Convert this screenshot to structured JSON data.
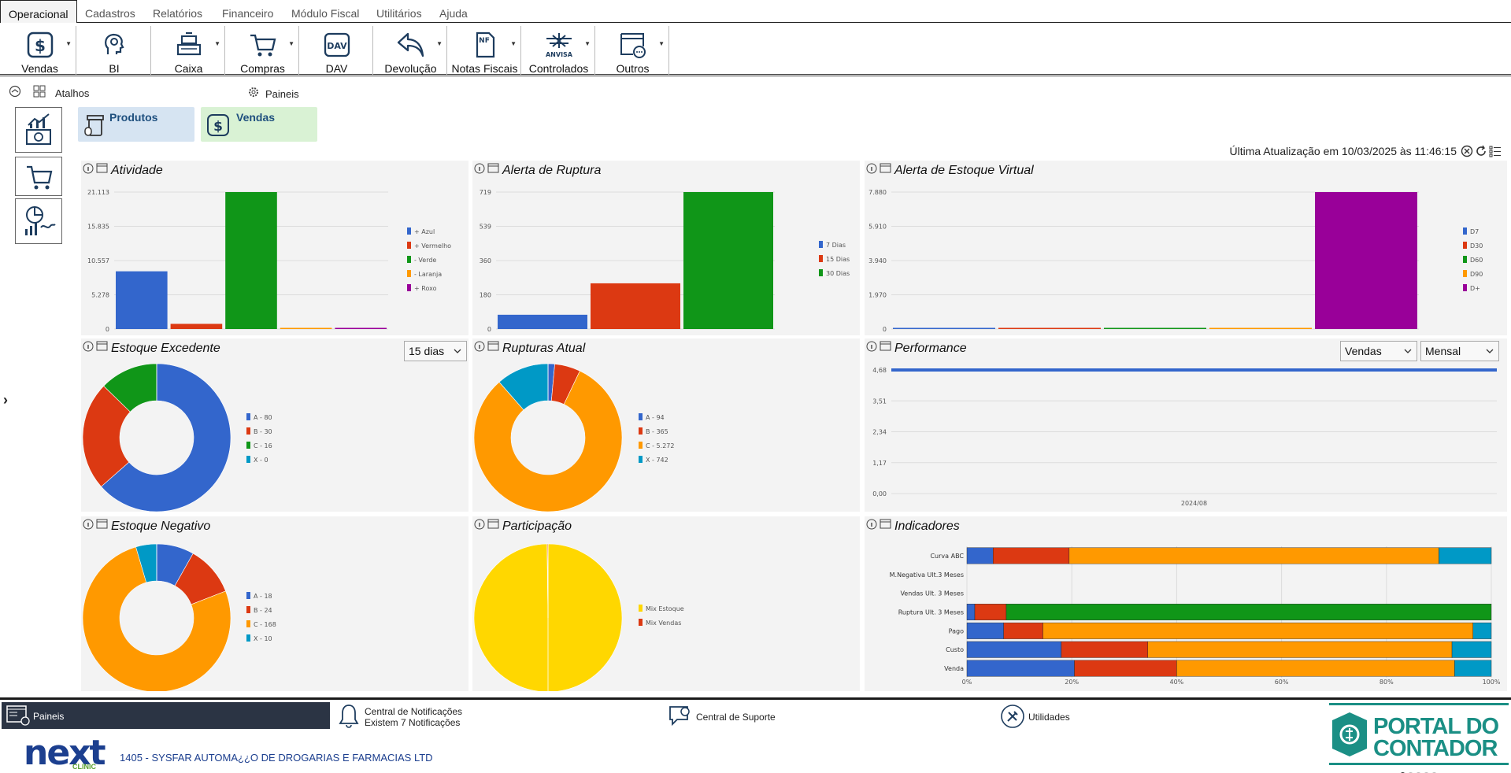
{
  "menu": {
    "items": [
      "Operacional",
      "Cadastros",
      "Relatórios",
      "Financeiro",
      "Módulo Fiscal",
      "Utilitários",
      "Ajuda"
    ]
  },
  "toolbar": {
    "vendas": "Vendas",
    "bi": "BI",
    "caixa": "Caixa",
    "compras": "Compras",
    "dav": "DAV",
    "devolucao": "Devolução",
    "notas": "Notas Fiscais",
    "controlados": "Controlados",
    "outros": "Outros",
    "dav_icon_text": "DAV",
    "nf_icon_text": "NF",
    "anvisa_icon_text": "ANVISA"
  },
  "subbar": {
    "atalhos": "Atalhos",
    "paineis": "Paineis"
  },
  "shortcuts": {
    "produtos": "Produtos",
    "vendas": "Vendas"
  },
  "last_update": "Última Atualização em 10/03/2025 às 11:46:15",
  "panels": {
    "atividade": "Atividade",
    "ruptura": "Alerta de Ruptura",
    "estoque_virtual": "Alerta de Estoque Virtual",
    "estoque_excedente": "Estoque Excedente",
    "rupturas_atual": "Rupturas Atual",
    "performance": "Performance",
    "estoque_negativo": "Estoque Negativo",
    "participacao": "Participação",
    "indicadores": "Indicadores"
  },
  "dropdowns": {
    "excedente_period": "15 dias",
    "performance_metric": "Vendas",
    "performance_period": "Mensal"
  },
  "colors": {
    "blue": "#3366cc",
    "red": "#dc3912",
    "green": "#109618",
    "orange": "#ff9900",
    "purple": "#990099",
    "cyan": "#0099c6",
    "yellow": "#ffd700"
  },
  "chart_data": [
    {
      "id": "atividade",
      "type": "bar",
      "categories": [
        "+ Azul",
        "+ Vermelho",
        "- Verde",
        "- Laranja",
        "+ Roxo"
      ],
      "values": [
        8900,
        800,
        21113,
        150,
        150
      ],
      "yticks": [
        "0",
        "5.278",
        "10.557",
        "15.835",
        "21.113"
      ],
      "ylim": [
        0,
        21113
      ],
      "colors": [
        "#3366cc",
        "#dc3912",
        "#109618",
        "#ff9900",
        "#990099"
      ]
    },
    {
      "id": "ruptura",
      "type": "bar",
      "categories": [
        "7 Dias",
        "15 Dias",
        "30 Dias"
      ],
      "values": [
        75,
        240,
        719
      ],
      "yticks": [
        "0",
        "180",
        "360",
        "539",
        "719"
      ],
      "ylim": [
        0,
        719
      ],
      "colors": [
        "#3366cc",
        "#dc3912",
        "#109618"
      ]
    },
    {
      "id": "estoque_virtual",
      "type": "bar",
      "categories": [
        "D7",
        "D30",
        "D60",
        "D90",
        "D+"
      ],
      "values": [
        30,
        30,
        30,
        30,
        7880
      ],
      "yticks": [
        "0",
        "1.970",
        "3.940",
        "5.910",
        "7.880"
      ],
      "ylim": [
        0,
        7880
      ],
      "colors": [
        "#3366cc",
        "#dc3912",
        "#109618",
        "#ff9900",
        "#990099"
      ]
    },
    {
      "id": "estoque_excedente",
      "type": "pie",
      "labels": [
        "A - 80",
        "B - 30",
        "C - 16",
        "X - 0"
      ],
      "values": [
        80,
        30,
        16,
        0
      ],
      "colors": [
        "#3366cc",
        "#dc3912",
        "#109618",
        "#0099c6"
      ]
    },
    {
      "id": "rupturas_atual",
      "type": "pie",
      "labels": [
        "A - 94",
        "B - 365",
        "C - 5.272",
        "X - 742"
      ],
      "values": [
        94,
        365,
        5272,
        742
      ],
      "colors": [
        "#3366cc",
        "#dc3912",
        "#ff9900",
        "#0099c6"
      ]
    },
    {
      "id": "performance",
      "type": "line",
      "x": [
        "2024/08"
      ],
      "values": [
        4.68
      ],
      "yticks": [
        "0,00",
        "1,17",
        "2,34",
        "3,51",
        "4,68"
      ],
      "ylim": [
        0,
        4.68
      ],
      "colors": [
        "#3366cc"
      ]
    },
    {
      "id": "estoque_negativo",
      "type": "pie",
      "labels": [
        "A - 18",
        "B - 24",
        "C - 168",
        "X - 10"
      ],
      "values": [
        18,
        24,
        168,
        10
      ],
      "colors": [
        "#3366cc",
        "#dc3912",
        "#ff9900",
        "#0099c6"
      ]
    },
    {
      "id": "participacao",
      "type": "pie",
      "labels": [
        "Mix Estoque",
        "Mix Vendas"
      ],
      "values": [
        99.8,
        0.2
      ],
      "colors": [
        "#ffd700",
        "#dc3912"
      ]
    },
    {
      "id": "indicadores",
      "type": "bar",
      "orientation": "horizontal-stacked-percent",
      "categories": [
        "Curva ABC",
        "M.Negativa Ult.3 Meses",
        "Vendas Ult. 3 Meses",
        "Ruptura Ult. 3 Meses",
        "Pago",
        "Custo",
        "Venda"
      ],
      "xticks": [
        "0%",
        "20%",
        "40%",
        "60%",
        "80%",
        "100%"
      ],
      "series": [
        {
          "color": "#3366cc",
          "values": [
            5,
            0,
            0,
            1.5,
            7,
            18,
            20.5
          ]
        },
        {
          "color": "#dc3912",
          "values": [
            14.5,
            0,
            0,
            6,
            7.5,
            16.5,
            19.5
          ]
        },
        {
          "color": "#ff9900",
          "values": [
            70.5,
            0,
            0,
            0,
            82,
            58,
            53
          ]
        },
        {
          "color": "#109618",
          "values": [
            0,
            0,
            0,
            92.5,
            0,
            0,
            0
          ]
        },
        {
          "color": "#0099c6",
          "values": [
            10,
            0,
            0,
            0,
            3.5,
            7.5,
            7
          ]
        }
      ]
    }
  ],
  "status": {
    "paineis": "Paineis",
    "notif_title": "Central de Notificações",
    "notif_count": "Existem 7 Notificações",
    "suporte": "Central de Suporte",
    "utilidades": "Utilidades",
    "company": "1405 - SYSFAR  AUTOMA¿¿O DE DROGARIAS E FARMACIAS LTD",
    "logo_main": "next",
    "logo_sub": "CLINIC",
    "portal_line1": "PORTAL DO",
    "portal_line2": "CONTADOR"
  }
}
